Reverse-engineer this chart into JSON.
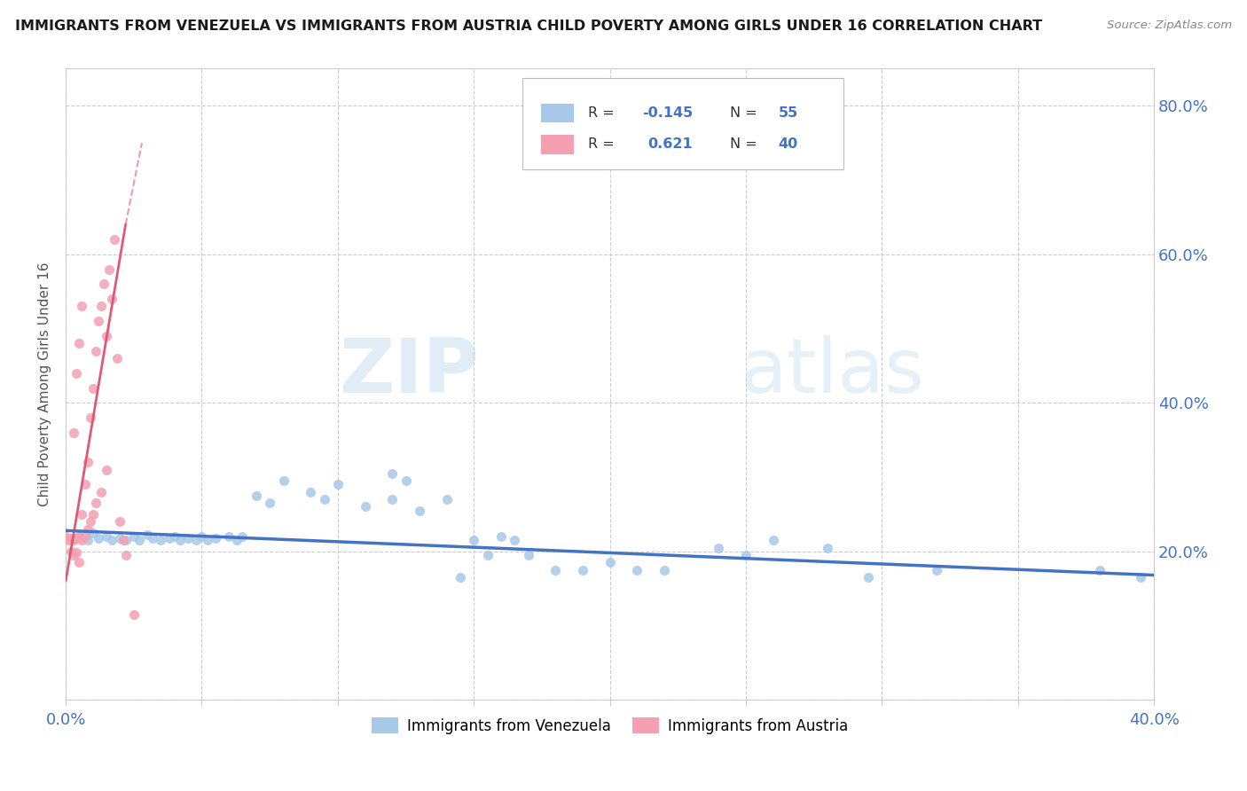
{
  "title": "IMMIGRANTS FROM VENEZUELA VS IMMIGRANTS FROM AUSTRIA CHILD POVERTY AMONG GIRLS UNDER 16 CORRELATION CHART",
  "source": "Source: ZipAtlas.com",
  "ylabel": "Child Poverty Among Girls Under 16",
  "xlim": [
    0.0,
    0.4
  ],
  "ylim": [
    0.0,
    0.85
  ],
  "watermark_zip": "ZIP",
  "watermark_atlas": "atlas",
  "legend1_label": "Immigrants from Venezuela",
  "legend2_label": "Immigrants from Austria",
  "R_venezuela": -0.145,
  "N_venezuela": 55,
  "R_austria": 0.621,
  "N_austria": 40,
  "venezuela_color": "#a8c8e8",
  "austria_color": "#f4a0b0",
  "venezuela_line_color": "#4472c4",
  "austria_line_color": "#e05878",
  "venezuela_x": [
    0.005,
    0.008,
    0.01,
    0.012,
    0.015,
    0.017,
    0.02,
    0.022,
    0.025,
    0.027,
    0.03,
    0.032,
    0.035,
    0.038,
    0.04,
    0.042,
    0.045,
    0.048,
    0.05,
    0.052,
    0.055,
    0.06,
    0.063,
    0.065,
    0.07,
    0.075,
    0.08,
    0.09,
    0.095,
    0.1,
    0.11,
    0.12,
    0.125,
    0.13,
    0.14,
    0.15,
    0.155,
    0.16,
    0.165,
    0.17,
    0.18,
    0.19,
    0.2,
    0.21,
    0.22,
    0.24,
    0.25,
    0.26,
    0.28,
    0.295,
    0.12,
    0.145,
    0.32,
    0.38,
    0.395
  ],
  "venezuela_y": [
    0.22,
    0.215,
    0.225,
    0.218,
    0.22,
    0.215,
    0.218,
    0.215,
    0.22,
    0.215,
    0.222,
    0.218,
    0.215,
    0.218,
    0.22,
    0.215,
    0.218,
    0.215,
    0.22,
    0.215,
    0.218,
    0.22,
    0.215,
    0.22,
    0.275,
    0.265,
    0.295,
    0.28,
    0.27,
    0.29,
    0.26,
    0.27,
    0.295,
    0.255,
    0.27,
    0.215,
    0.195,
    0.22,
    0.215,
    0.195,
    0.175,
    0.175,
    0.185,
    0.175,
    0.175,
    0.205,
    0.195,
    0.215,
    0.205,
    0.165,
    0.305,
    0.165,
    0.175,
    0.175,
    0.165
  ],
  "austria_x": [
    0.0,
    0.001,
    0.002,
    0.002,
    0.003,
    0.003,
    0.004,
    0.004,
    0.005,
    0.005,
    0.006,
    0.006,
    0.007,
    0.007,
    0.008,
    0.008,
    0.009,
    0.009,
    0.01,
    0.01,
    0.011,
    0.011,
    0.012,
    0.013,
    0.013,
    0.014,
    0.015,
    0.015,
    0.016,
    0.017,
    0.018,
    0.019,
    0.02,
    0.021,
    0.022,
    0.003,
    0.004,
    0.005,
    0.006,
    0.025
  ],
  "austria_y": [
    0.22,
    0.215,
    0.218,
    0.2,
    0.215,
    0.195,
    0.218,
    0.198,
    0.22,
    0.185,
    0.25,
    0.215,
    0.29,
    0.22,
    0.32,
    0.23,
    0.38,
    0.24,
    0.42,
    0.25,
    0.47,
    0.265,
    0.51,
    0.53,
    0.28,
    0.56,
    0.49,
    0.31,
    0.58,
    0.54,
    0.62,
    0.46,
    0.24,
    0.215,
    0.195,
    0.36,
    0.44,
    0.48,
    0.53,
    0.115
  ],
  "ven_line_x": [
    0.0,
    0.4
  ],
  "ven_line_y": [
    0.228,
    0.168
  ],
  "aut_line_x": [
    0.0,
    0.022
  ],
  "aut_line_y": [
    0.16,
    0.64
  ]
}
